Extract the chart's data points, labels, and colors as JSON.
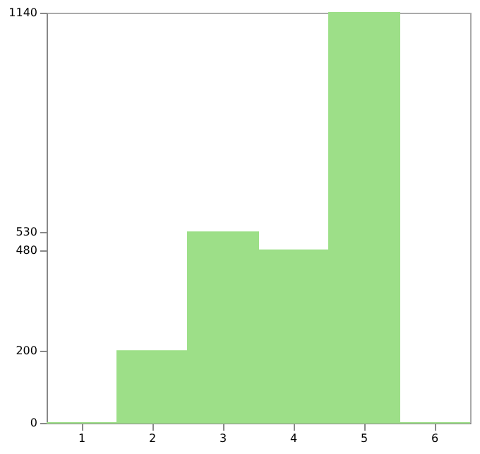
{
  "chart_data": {
    "type": "bar",
    "categories": [
      "1",
      "2",
      "3",
      "4",
      "5",
      "6"
    ],
    "values": [
      0,
      200,
      530,
      480,
      1140,
      0
    ],
    "color": "#9ddf88",
    "ylim": [
      0,
      1140
    ],
    "yticks": [
      0,
      200,
      480,
      530,
      1140
    ],
    "grid": false
  }
}
